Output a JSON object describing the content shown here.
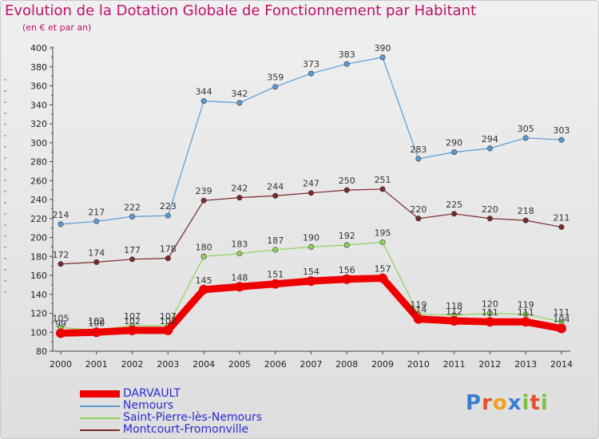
{
  "header": {
    "title": "Evolution de la Dotation Globale de Fonctionnement par Habitant",
    "subtitle": "(en € et par an)"
  },
  "logo": {
    "text": "Proxiti",
    "letters": [
      {
        "char": "P",
        "color": "#3a7fd4"
      },
      {
        "char": "r",
        "color": "#e8502a"
      },
      {
        "char": "o",
        "color": "#f0a020"
      },
      {
        "char": "x",
        "color": "#3a7fd4"
      },
      {
        "char": "i",
        "color": "#7cc242"
      },
      {
        "char": "t",
        "color": "#e8502a"
      },
      {
        "char": "i",
        "color": "#7cc242"
      }
    ]
  },
  "chart_data": {
    "type": "line",
    "title": "Evolution de la Dotation Globale de Fonctionnement par Habitant",
    "subtitle": "(en € et par an)",
    "xlabel": "",
    "ylabel": "",
    "x": [
      "2000",
      "2001",
      "2002",
      "2003",
      "2004",
      "2005",
      "2006",
      "2007",
      "2008",
      "2009",
      "2010",
      "2011",
      "2012",
      "2013",
      "2014"
    ],
    "ylim": [
      80,
      400
    ],
    "yticks": [
      80,
      100,
      120,
      140,
      160,
      180,
      200,
      220,
      240,
      260,
      280,
      300,
      320,
      340,
      360,
      380,
      400
    ],
    "grid": false,
    "legend_position": "bottom-left",
    "series": [
      {
        "name": "DARVAULT",
        "color": "#ee0000",
        "values": [
          99,
          100,
          102,
          102,
          145,
          148,
          151,
          154,
          156,
          157,
          114,
          112,
          111,
          111,
          104
        ],
        "labels": [
          "99",
          "100",
          "102",
          "102",
          "145",
          "148",
          "151",
          "154",
          "156",
          "157",
          "114",
          "112",
          "111",
          "111",
          "104"
        ]
      },
      {
        "name": "Nemours",
        "color": "#5b9bd5",
        "values": [
          214,
          217,
          222,
          223,
          344,
          342,
          359,
          373,
          383,
          390,
          283,
          290,
          294,
          305,
          303
        ],
        "labels": [
          "214",
          "217",
          "222",
          "223",
          "344",
          "342",
          "359",
          "373",
          "383",
          "390",
          "283",
          "290",
          "294",
          "305",
          "303"
        ]
      },
      {
        "name": "Saint-Pierre-lès-Nemours",
        "color": "#8fd45a",
        "values": [
          105,
          102,
          107,
          107,
          180,
          183,
          187,
          190,
          192,
          195,
          119,
          118,
          120,
          119,
          111
        ],
        "labels": [
          "105",
          "102",
          "107",
          "107",
          "180",
          "183",
          "187",
          "190",
          "192",
          "195",
          "119",
          "118",
          "120",
          "119",
          "111"
        ]
      },
      {
        "name": "Montcourt-Fromonville",
        "color": "#7a2a2a",
        "values": [
          172,
          174,
          177,
          178,
          239,
          242,
          244,
          247,
          250,
          251,
          220,
          225,
          220,
          218,
          211
        ],
        "labels": [
          "172",
          "174",
          "177",
          "178",
          "239",
          "242",
          "244",
          "247",
          "250",
          "251",
          "220",
          "225",
          "220",
          "218",
          "211"
        ]
      }
    ]
  }
}
